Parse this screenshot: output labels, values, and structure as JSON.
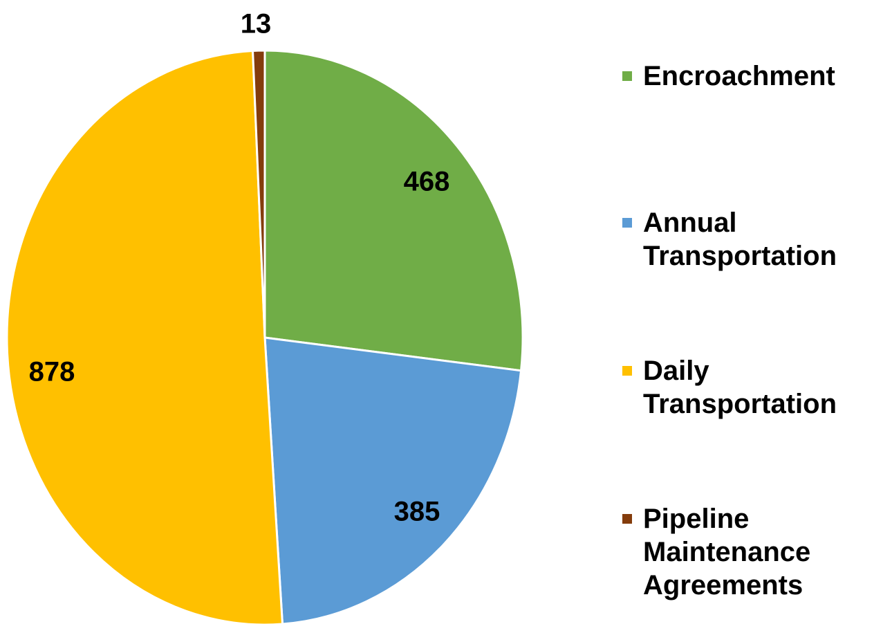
{
  "chart_data": {
    "type": "pie",
    "categories": [
      "Encroachment",
      "Annual Transportation",
      "Daily Transportation",
      "Pipeline Maintenance Agreements"
    ],
    "values": [
      468,
      385,
      878,
      13
    ],
    "colors": [
      "#70ad47",
      "#5b9bd5",
      "#ffc000",
      "#843c0c"
    ]
  }
}
